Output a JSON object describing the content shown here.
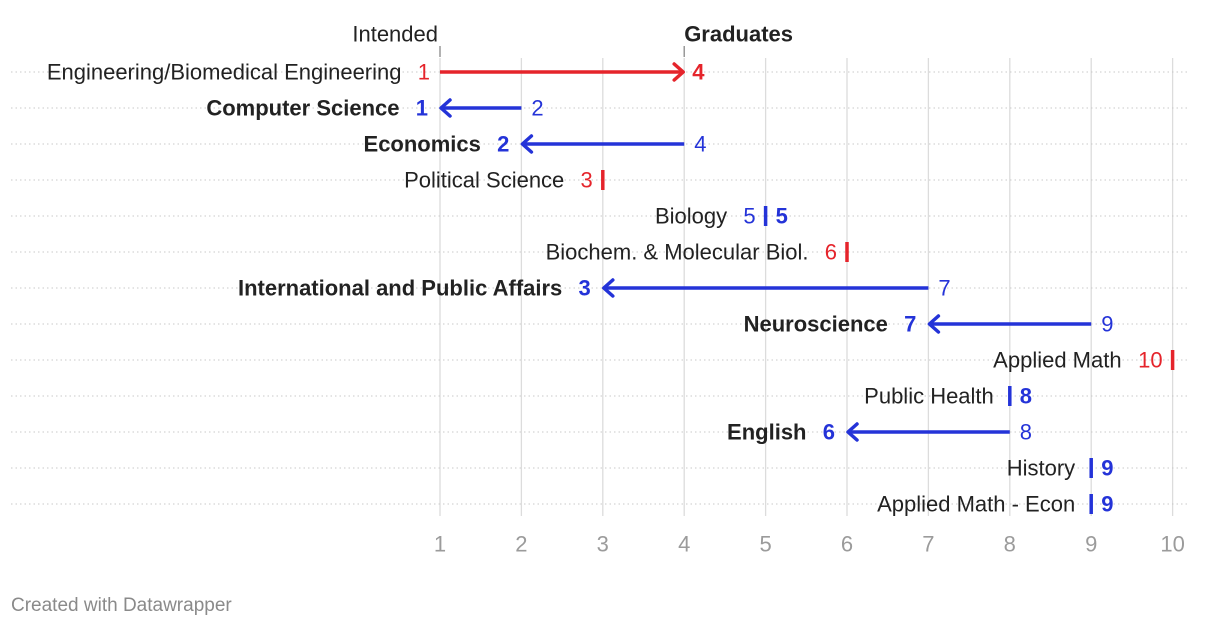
{
  "footer": {
    "credit": "Created with Datawrapper"
  },
  "chart_data": {
    "type": "arrow",
    "header_from": "Intended",
    "header_to": "Graduates",
    "xlim": [
      1,
      10
    ],
    "ticks": [
      1,
      2,
      3,
      4,
      5,
      6,
      7,
      8,
      9,
      10
    ],
    "grid": true,
    "colors": {
      "up": "#e5242b",
      "down": "#2433d8",
      "grid": "#dcdcdc",
      "tick": "#9b9b9b",
      "label": "#222222"
    },
    "rows": [
      {
        "label": "Engineering/Biomedical Engineering",
        "from": 1,
        "to": 4,
        "color": "up",
        "bold": false
      },
      {
        "label": "Computer Science",
        "from": 2,
        "to": 1,
        "color": "down",
        "bold": true
      },
      {
        "label": "Economics",
        "from": 4,
        "to": 2,
        "color": "down",
        "bold": true
      },
      {
        "label": "Political Science",
        "from": 3,
        "to": 3,
        "color": "up",
        "bold": false,
        "single": true
      },
      {
        "label": "Biology",
        "from": 5,
        "to": 5,
        "color": "down",
        "bold": false
      },
      {
        "label": "Biochem. & Molecular Biol.",
        "from": 6,
        "to": 6,
        "color": "up",
        "bold": false,
        "single": true
      },
      {
        "label": "International and Public Affairs",
        "from": 7,
        "to": 3,
        "color": "down",
        "bold": true
      },
      {
        "label": "Neuroscience",
        "from": 9,
        "to": 7,
        "color": "down",
        "bold": true
      },
      {
        "label": "Applied Math",
        "from": 10,
        "to": 10,
        "color": "up",
        "bold": false,
        "single": true
      },
      {
        "label": "Public Health",
        "from": 8,
        "to": 8,
        "color": "down",
        "bold": false,
        "single": true,
        "value_bold": true
      },
      {
        "label": "English",
        "from": 8,
        "to": 6,
        "color": "down",
        "bold": true
      },
      {
        "label": "History",
        "from": 9,
        "to": 9,
        "color": "down",
        "bold": false,
        "single": true,
        "value_bold": true
      },
      {
        "label": "Applied Math - Econ",
        "from": 9,
        "to": 9,
        "color": "down",
        "bold": false,
        "single": true,
        "value_bold": true
      }
    ]
  }
}
